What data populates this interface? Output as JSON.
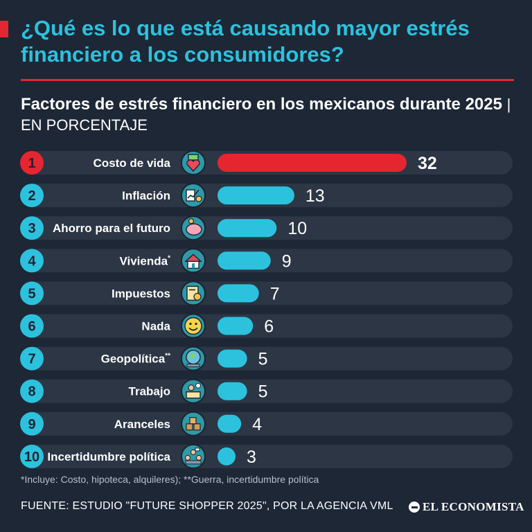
{
  "header": {
    "title": "¿Qué es lo que está causando mayor estrés financiero a los consumidores?"
  },
  "subtitle": {
    "main": "Factores de estrés financiero en los mexicanos durante 2025",
    "separator": "|",
    "unit": "EN PORCENTAJE"
  },
  "colors": {
    "background": "#1d2736",
    "row_track": "#2c3645",
    "accent_red": "#e52630",
    "accent_cyan": "#2cc2de"
  },
  "chart_data": {
    "type": "bar",
    "orientation": "horizontal",
    "title": "Factores de estrés financiero en los mexicanos durante 2025",
    "unit": "EN PORCENTAJE",
    "xlim": [
      0,
      32
    ],
    "rows": [
      {
        "rank": "1",
        "label": "Costo de vida",
        "mark": "",
        "value": 32,
        "icon": "money-heart-icon"
      },
      {
        "rank": "2",
        "label": "Inflación",
        "mark": "",
        "value": 13,
        "icon": "inflation-chart-icon"
      },
      {
        "rank": "3",
        "label": "Ahorro para el futuro",
        "mark": "",
        "value": 10,
        "icon": "piggy-bank-icon"
      },
      {
        "rank": "4",
        "label": "Vivienda",
        "mark": "*",
        "value": 9,
        "icon": "house-money-icon"
      },
      {
        "rank": "5",
        "label": "Impuestos",
        "mark": "",
        "value": 7,
        "icon": "tax-document-icon"
      },
      {
        "rank": "6",
        "label": "Nada",
        "mark": "",
        "value": 6,
        "icon": "smiley-face-icon"
      },
      {
        "rank": "7",
        "label": "Geopolítica",
        "mark": "**",
        "value": 5,
        "icon": "globe-icon"
      },
      {
        "rank": "8",
        "label": "Trabajo",
        "mark": "",
        "value": 5,
        "icon": "office-worker-icon"
      },
      {
        "rank": "9",
        "label": "Aranceles",
        "mark": "",
        "value": 4,
        "icon": "shipping-boxes-icon"
      },
      {
        "rank": "10",
        "label": "Incertidumbre política",
        "mark": "",
        "value": 3,
        "icon": "political-crowd-icon"
      }
    ]
  },
  "footnote": "*Incluye: Costo, hipoteca, alquileres); **Guerra, incertidumbre política",
  "source": "FUENTE:  ESTUDIO \"FUTURE SHOPPER 2025\", POR LA AGENCIA VML",
  "brand": "EL ECONOMISTA"
}
